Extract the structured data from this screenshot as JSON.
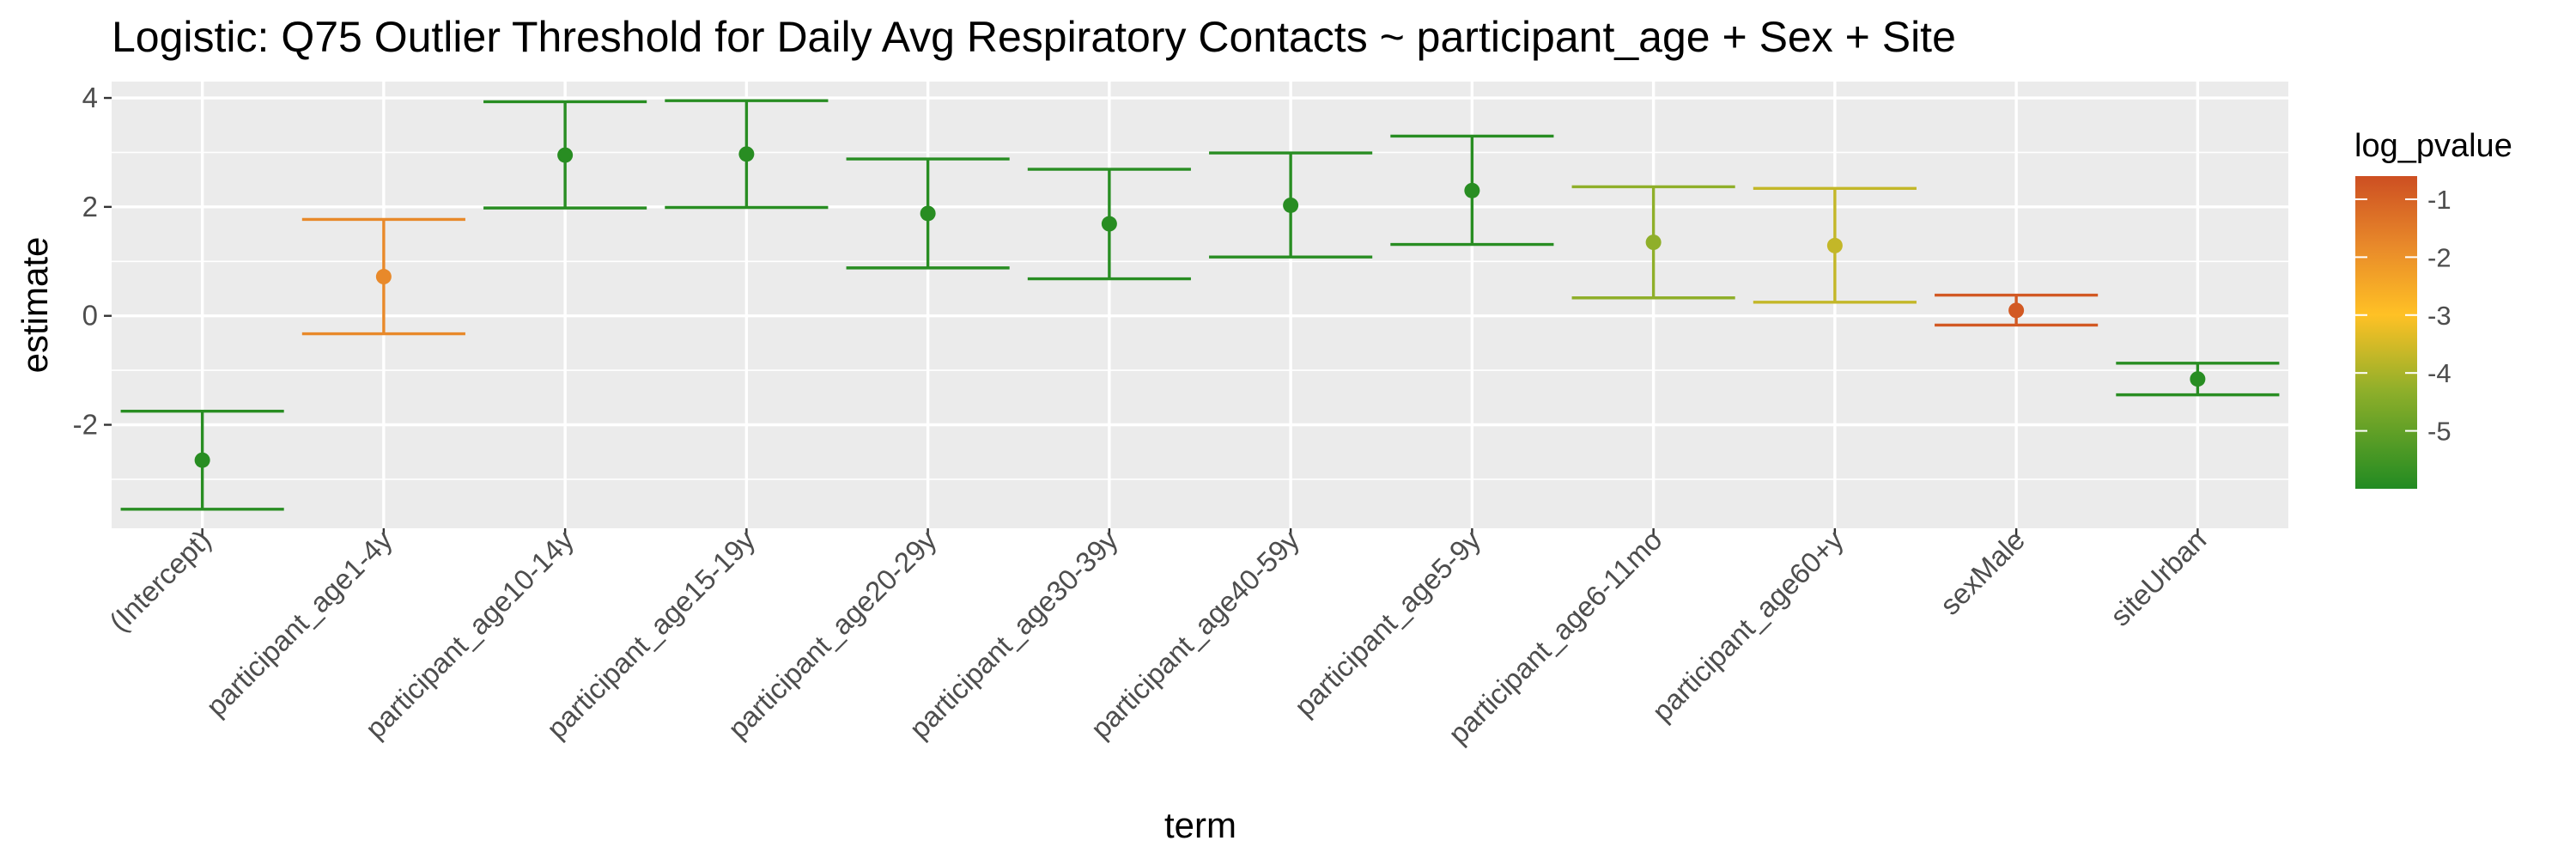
{
  "chart_data": {
    "type": "errorbar",
    "title": "Logistic: Q75 Outlier Threshold for Daily Avg Respiratory Contacts ~ participant_age + Sex + Site",
    "xlabel": "term",
    "ylabel": "estimate",
    "ylim": [
      -3.9,
      4.3
    ],
    "yticks": [
      {
        "value": 4,
        "label": "4"
      },
      {
        "value": 2,
        "label": "2"
      },
      {
        "value": 0,
        "label": "0"
      },
      {
        "value": -2,
        "label": "-2"
      }
    ],
    "grid": true,
    "categories": [
      "(Intercept)",
      "participant_age1-4y",
      "participant_age10-14y",
      "participant_age15-19y",
      "participant_age20-29y",
      "participant_age30-39y",
      "participant_age40-59y",
      "participant_age5-9y",
      "participant_age6-11mo",
      "participant_age60+y",
      "sexMale",
      "siteUrban"
    ],
    "points": [
      {
        "term": "(Intercept)",
        "estimate": -2.65,
        "lower": -3.55,
        "upper": -1.75,
        "log_pvalue": -5.9
      },
      {
        "term": "participant_age1-4y",
        "estimate": 0.72,
        "lower": -0.33,
        "upper": 1.77,
        "log_pvalue": -1.8
      },
      {
        "term": "participant_age10-14y",
        "estimate": 2.95,
        "lower": 1.98,
        "upper": 3.93,
        "log_pvalue": -5.9
      },
      {
        "term": "participant_age15-19y",
        "estimate": 2.97,
        "lower": 1.99,
        "upper": 3.95,
        "log_pvalue": -5.9
      },
      {
        "term": "participant_age20-29y",
        "estimate": 1.88,
        "lower": 0.88,
        "upper": 2.88,
        "log_pvalue": -5.9
      },
      {
        "term": "participant_age30-39y",
        "estimate": 1.69,
        "lower": 0.68,
        "upper": 2.69,
        "log_pvalue": -5.9
      },
      {
        "term": "participant_age40-59y",
        "estimate": 2.03,
        "lower": 1.08,
        "upper": 2.99,
        "log_pvalue": -5.9
      },
      {
        "term": "participant_age5-9y",
        "estimate": 2.3,
        "lower": 1.31,
        "upper": 3.3,
        "log_pvalue": -5.9
      },
      {
        "term": "participant_age6-11mo",
        "estimate": 1.35,
        "lower": 0.33,
        "upper": 2.37,
        "log_pvalue": -4.3
      },
      {
        "term": "participant_age60+y",
        "estimate": 1.29,
        "lower": 0.25,
        "upper": 2.34,
        "log_pvalue": -3.7
      },
      {
        "term": "sexMale",
        "estimate": 0.1,
        "lower": -0.17,
        "upper": 0.38,
        "log_pvalue": -0.8
      },
      {
        "term": "siteUrban",
        "estimate": -1.16,
        "lower": -1.45,
        "upper": -0.87,
        "log_pvalue": -5.9
      }
    ],
    "color_scale": {
      "title": "log_pvalue",
      "min": -6.0,
      "max": -0.6,
      "stops": [
        {
          "value": -6.0,
          "color": "#228B22"
        },
        {
          "value": -4.3,
          "color": "#8FAF2A"
        },
        {
          "value": -3.0,
          "color": "#FFC125"
        },
        {
          "value": -1.8,
          "color": "#E8892A"
        },
        {
          "value": -0.6,
          "color": "#CD4F22"
        }
      ],
      "ticks": [
        {
          "value": -1,
          "label": "-1"
        },
        {
          "value": -2,
          "label": "-2"
        },
        {
          "value": -3,
          "label": "-3"
        },
        {
          "value": -4,
          "label": "-4"
        },
        {
          "value": -5,
          "label": "-5"
        }
      ]
    },
    "legend_position": "right"
  }
}
